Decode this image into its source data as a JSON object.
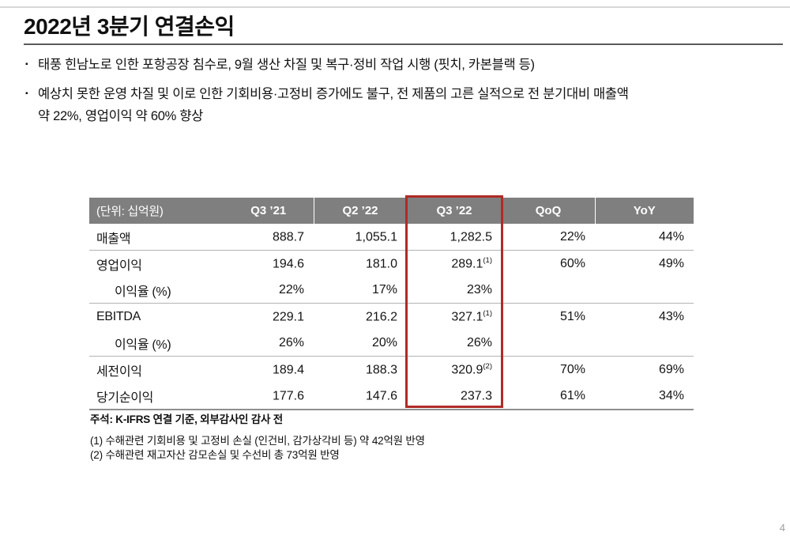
{
  "title": "2022년 3분기 연결손익",
  "bullets": [
    {
      "lines": [
        "태풍 힌남노로 인한 포항공장 침수로, 9월 생산 차질 및 복구·정비 작업 시행 (핏치, 카본블랙 등)",
        ""
      ]
    },
    {
      "lines": [
        "예상치 못한 운영 차질 및 이로 인한 기회비용·고정비 증가에도 불구, 전 제품의 고른 실적으로 전 분기대비 매출액",
        "약 22%, 영업이익 약 60% 향상"
      ]
    }
  ],
  "table": {
    "unit_label": "(단위: 십억원)",
    "columns": [
      "Q3 ’21",
      "Q2 ’22",
      "Q3 ’22",
      "QoQ",
      "YoY"
    ],
    "highlighted_column": "Q3 ’22",
    "rows": [
      {
        "label": "매출액",
        "cells": [
          {
            "v": "888.7"
          },
          {
            "v": "1,055.1"
          },
          {
            "v": "1,282.5"
          },
          {
            "v": "22%"
          },
          {
            "v": "44%"
          }
        ]
      },
      {
        "label": "영업이익",
        "cells": [
          {
            "v": "194.6"
          },
          {
            "v": "181.0"
          },
          {
            "v": "289.1",
            "sup": "(1)"
          },
          {
            "v": "60%"
          },
          {
            "v": "49%"
          }
        ]
      },
      {
        "label": "이익율 (%)",
        "cells": [
          {
            "v": "22%"
          },
          {
            "v": "17%"
          },
          {
            "v": "23%"
          },
          {
            "v": ""
          },
          {
            "v": ""
          }
        ]
      },
      {
        "label": "EBITDA",
        "cells": [
          {
            "v": "229.1"
          },
          {
            "v": "216.2"
          },
          {
            "v": "327.1",
            "sup": "(1)"
          },
          {
            "v": "51%"
          },
          {
            "v": "43%"
          }
        ]
      },
      {
        "label": "이익율 (%)",
        "cells": [
          {
            "v": "26%"
          },
          {
            "v": "20%"
          },
          {
            "v": "26%"
          },
          {
            "v": ""
          },
          {
            "v": ""
          }
        ]
      },
      {
        "label": "세전이익",
        "cells": [
          {
            "v": "189.4"
          },
          {
            "v": "188.3"
          },
          {
            "v": "320.9",
            "sup": "(2)"
          },
          {
            "v": "70%"
          },
          {
            "v": "69%"
          }
        ]
      },
      {
        "label": "당기순이익",
        "cells": [
          {
            "v": "177.6"
          },
          {
            "v": "147.6"
          },
          {
            "v": "237.3"
          },
          {
            "v": "61%"
          },
          {
            "v": "34%"
          }
        ]
      }
    ]
  },
  "notes": {
    "basis": "주석: K-IFRS 연결 기준, 외부감사인 감사 전",
    "footnotes": [
      "(1) 수해관련 기회비용 및 고정비 손실 (인건비, 감가상각비 등) 약 42억원 반영",
      "(2) 수해관련 재고자산 감모손실 및 수선비 총 73억원 반영"
    ]
  },
  "page_number": "4",
  "colors": {
    "header_bg": "#7f7f7f",
    "highlight_border": "#b02b26"
  }
}
